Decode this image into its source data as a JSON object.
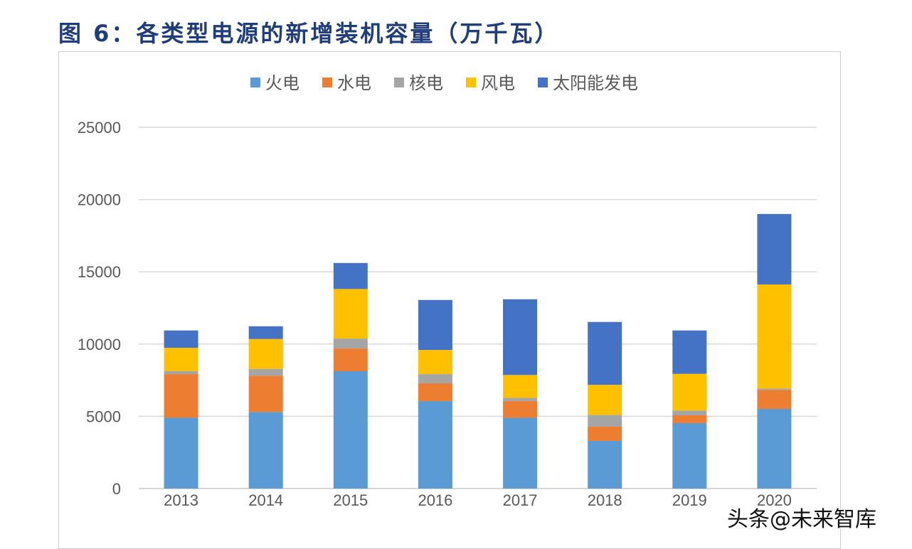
{
  "title": "图 6：各类型电源的新增装机容量（万千瓦）",
  "watermark": "头条@未来智库",
  "chart_data": {
    "type": "bar",
    "stacked": true,
    "title": "",
    "xlabel": "",
    "ylabel": "",
    "ylim": [
      0,
      25000
    ],
    "yticks": [
      0,
      5000,
      10000,
      15000,
      20000,
      25000
    ],
    "grid": true,
    "legend_position": "top",
    "categories": [
      "2013",
      "2014",
      "2015",
      "2016",
      "2017",
      "2018",
      "2019",
      "2020"
    ],
    "series": [
      {
        "name": "火电",
        "color": "#5b9bd5",
        "values": [
          4900,
          5300,
          8120,
          6050,
          4900,
          3300,
          4530,
          5510
        ]
      },
      {
        "name": "水电",
        "color": "#ed7d31",
        "values": [
          3020,
          2510,
          1570,
          1230,
          1150,
          980,
          540,
          1310
        ]
      },
      {
        "name": "核电",
        "color": "#a5a5a5",
        "values": [
          200,
          470,
          690,
          640,
          230,
          820,
          330,
          100
        ]
      },
      {
        "name": "风电",
        "color": "#ffc000",
        "values": [
          1620,
          2070,
          3430,
          1670,
          1580,
          2080,
          2540,
          7200
        ]
      },
      {
        "name": "太阳能发电",
        "color": "#4472c4",
        "values": [
          1200,
          880,
          1800,
          3460,
          5240,
          4350,
          3000,
          4880
        ]
      }
    ]
  }
}
